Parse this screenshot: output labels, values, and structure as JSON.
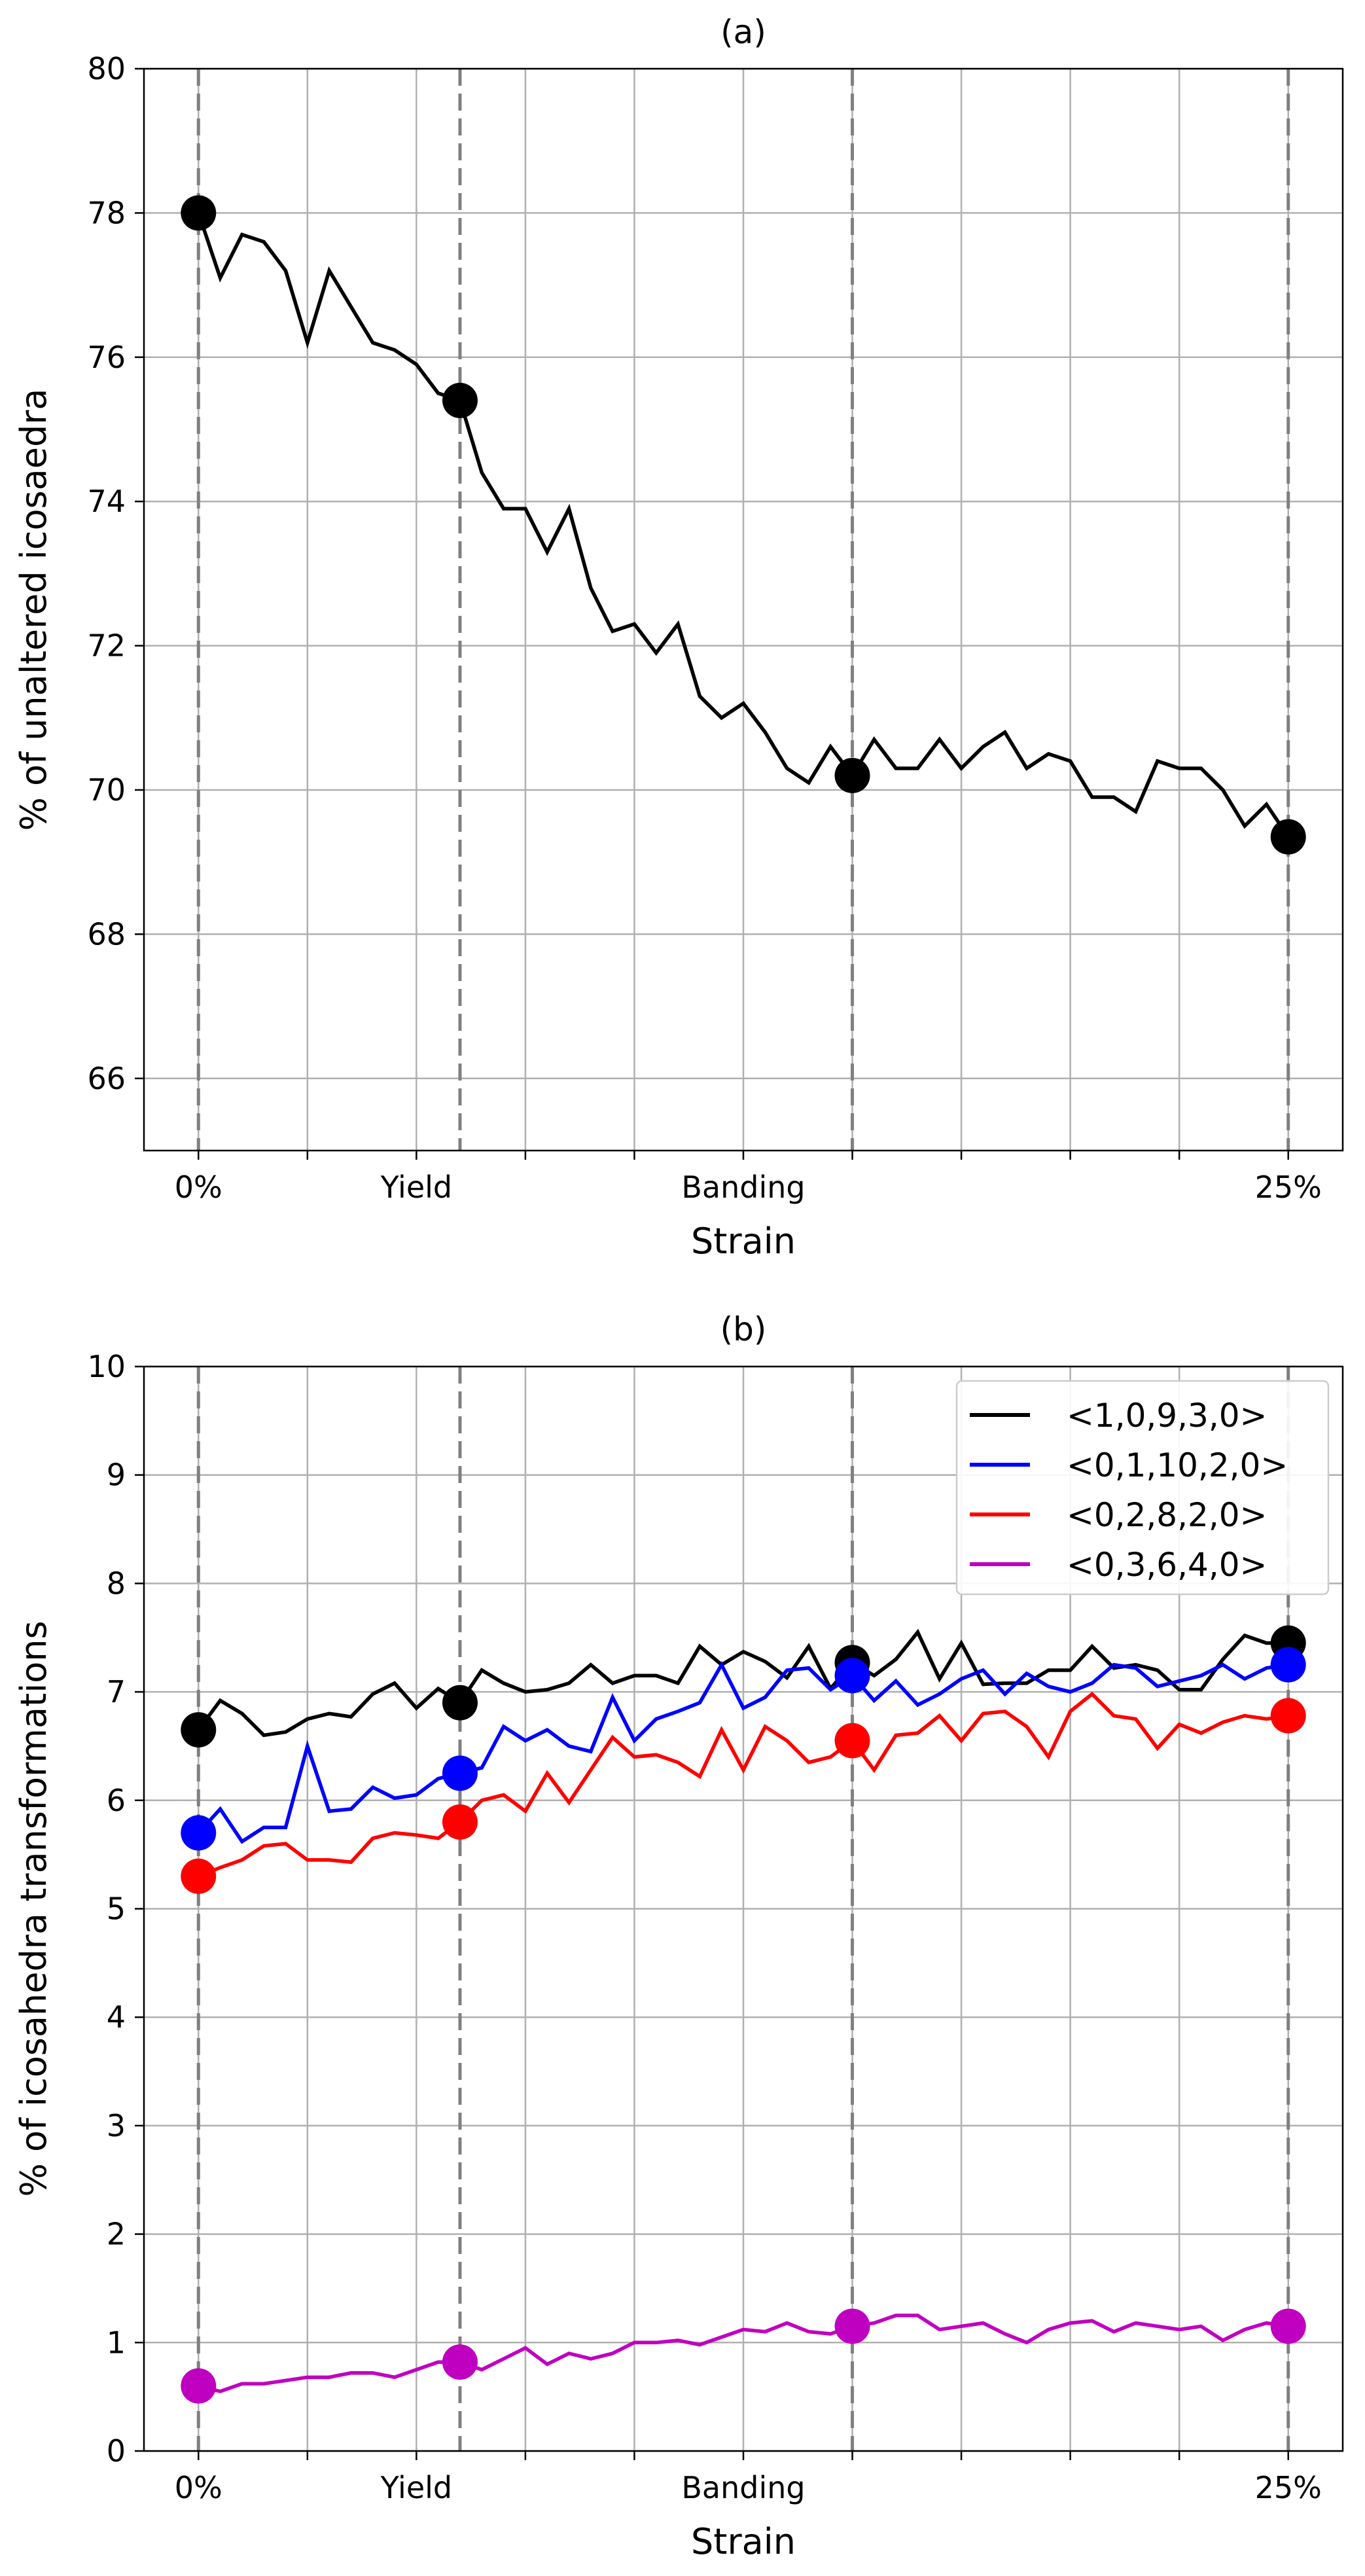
{
  "chart_data": [
    {
      "type": "line",
      "title": "(a)",
      "xlabel": "Strain",
      "ylabel": "% of unaltered icosaedra",
      "xlim": [
        -0.5,
        10.5
      ],
      "ylim": [
        65,
        80
      ],
      "yticks": [
        66,
        68,
        70,
        72,
        74,
        76,
        78,
        80
      ],
      "xticks": [
        {
          "pos": 0,
          "label": "0%"
        },
        {
          "pos": 1,
          "label": ""
        },
        {
          "pos": 2,
          "label": "Yield"
        },
        {
          "pos": 3,
          "label": ""
        },
        {
          "pos": 4,
          "label": ""
        },
        {
          "pos": 5,
          "label": "Banding"
        },
        {
          "pos": 6,
          "label": ""
        },
        {
          "pos": 7,
          "label": ""
        },
        {
          "pos": 8,
          "label": ""
        },
        {
          "pos": 9,
          "label": ""
        },
        {
          "pos": 10,
          "label": "25%"
        }
      ],
      "vlines": [
        0,
        2.4,
        6,
        10
      ],
      "grid": true,
      "series": [
        {
          "name": "unaltered icosaedra",
          "color": "#000000",
          "x": [
            0,
            0.2,
            0.4,
            0.6,
            0.8,
            1.0,
            1.2,
            1.4,
            1.6,
            1.8,
            2.0,
            2.2,
            2.4,
            2.6,
            2.8,
            3.0,
            3.2,
            3.4,
            3.6,
            3.8,
            4.0,
            4.2,
            4.4,
            4.6,
            4.8,
            5.0,
            5.2,
            5.4,
            5.6,
            5.8,
            6.0,
            6.2,
            6.4,
            6.6,
            6.8,
            7.0,
            7.2,
            7.4,
            7.6,
            7.8,
            8.0,
            8.2,
            8.4,
            8.6,
            8.8,
            9.0,
            9.2,
            9.4,
            9.6,
            9.8,
            10.0
          ],
          "y": [
            78.0,
            77.1,
            77.7,
            77.6,
            77.2,
            76.2,
            77.2,
            76.7,
            76.2,
            76.1,
            75.9,
            75.5,
            75.4,
            74.4,
            73.9,
            73.9,
            73.3,
            73.9,
            72.8,
            72.2,
            72.3,
            71.9,
            72.3,
            71.3,
            71.0,
            71.2,
            70.8,
            70.3,
            70.1,
            70.6,
            70.2,
            70.7,
            70.3,
            70.3,
            70.7,
            70.3,
            70.6,
            70.8,
            70.3,
            70.5,
            70.4,
            69.9,
            69.9,
            69.7,
            70.4,
            70.3,
            70.3,
            70.0,
            69.5,
            69.8,
            69.35
          ],
          "markers": [
            {
              "x": 0,
              "y": 78.0
            },
            {
              "x": 2.4,
              "y": 75.4
            },
            {
              "x": 6.0,
              "y": 70.2
            },
            {
              "x": 10.0,
              "y": 69.35
            }
          ]
        }
      ]
    },
    {
      "type": "line",
      "title": "(b)",
      "xlabel": "Strain",
      "ylabel": "% of icosahedra transformations",
      "xlim": [
        -0.5,
        10.5
      ],
      "ylim": [
        0,
        10
      ],
      "yticks": [
        0,
        1,
        2,
        3,
        4,
        5,
        6,
        7,
        8,
        9,
        10
      ],
      "xticks": [
        {
          "pos": 0,
          "label": "0%"
        },
        {
          "pos": 1,
          "label": ""
        },
        {
          "pos": 2,
          "label": "Yield"
        },
        {
          "pos": 3,
          "label": ""
        },
        {
          "pos": 4,
          "label": ""
        },
        {
          "pos": 5,
          "label": "Banding"
        },
        {
          "pos": 6,
          "label": ""
        },
        {
          "pos": 7,
          "label": ""
        },
        {
          "pos": 8,
          "label": ""
        },
        {
          "pos": 9,
          "label": ""
        },
        {
          "pos": 10,
          "label": "25%"
        }
      ],
      "vlines": [
        0,
        2.4,
        6,
        10
      ],
      "grid": true,
      "legend": "top-right",
      "series": [
        {
          "name": "<1,0,9,3,0>",
          "color": "#000000",
          "x": [
            0,
            0.2,
            0.4,
            0.6,
            0.8,
            1.0,
            1.2,
            1.4,
            1.6,
            1.8,
            2.0,
            2.2,
            2.4,
            2.6,
            2.8,
            3.0,
            3.2,
            3.4,
            3.6,
            3.8,
            4.0,
            4.2,
            4.4,
            4.6,
            4.8,
            5.0,
            5.2,
            5.4,
            5.6,
            5.8,
            6.0,
            6.2,
            6.4,
            6.6,
            6.8,
            7.0,
            7.2,
            7.4,
            7.6,
            7.8,
            8.0,
            8.2,
            8.4,
            8.6,
            8.8,
            9.0,
            9.2,
            9.4,
            9.6,
            9.8,
            10.0
          ],
          "y": [
            6.65,
            6.92,
            6.8,
            6.6,
            6.63,
            6.75,
            6.8,
            6.77,
            6.98,
            7.08,
            6.85,
            7.03,
            6.9,
            7.2,
            7.08,
            7.0,
            7.02,
            7.08,
            7.25,
            7.08,
            7.15,
            7.15,
            7.08,
            7.42,
            7.25,
            7.37,
            7.28,
            7.13,
            7.42,
            7.03,
            7.27,
            7.15,
            7.3,
            7.55,
            7.12,
            7.45,
            7.07,
            7.08,
            7.08,
            7.2,
            7.2,
            7.42,
            7.22,
            7.25,
            7.2,
            7.02,
            7.02,
            7.3,
            7.52,
            7.45,
            7.45
          ],
          "markers": [
            {
              "x": 0,
              "y": 6.65
            },
            {
              "x": 2.4,
              "y": 6.9
            },
            {
              "x": 6.0,
              "y": 7.27
            },
            {
              "x": 10.0,
              "y": 7.45
            }
          ]
        },
        {
          "name": "<0,1,10,2,0>",
          "color": "#0000ff",
          "x": [
            0,
            0.2,
            0.4,
            0.6,
            0.8,
            1.0,
            1.2,
            1.4,
            1.6,
            1.8,
            2.0,
            2.2,
            2.4,
            2.6,
            2.8,
            3.0,
            3.2,
            3.4,
            3.6,
            3.8,
            4.0,
            4.2,
            4.4,
            4.6,
            4.8,
            5.0,
            5.2,
            5.4,
            5.6,
            5.8,
            6.0,
            6.2,
            6.4,
            6.6,
            6.8,
            7.0,
            7.2,
            7.4,
            7.6,
            7.8,
            8.0,
            8.2,
            8.4,
            8.6,
            8.8,
            9.0,
            9.2,
            9.4,
            9.6,
            9.8,
            10.0
          ],
          "y": [
            5.7,
            5.92,
            5.62,
            5.75,
            5.75,
            6.5,
            5.9,
            5.92,
            6.12,
            6.02,
            6.05,
            6.2,
            6.25,
            6.3,
            6.68,
            6.55,
            6.65,
            6.5,
            6.45,
            6.95,
            6.55,
            6.75,
            6.82,
            6.9,
            7.25,
            6.85,
            6.95,
            7.2,
            7.22,
            7.02,
            7.15,
            6.92,
            7.1,
            6.88,
            6.98,
            7.12,
            7.2,
            6.98,
            7.17,
            7.05,
            7.0,
            7.08,
            7.25,
            7.22,
            7.05,
            7.1,
            7.15,
            7.25,
            7.12,
            7.22,
            7.25
          ],
          "markers": [
            {
              "x": 0,
              "y": 5.7
            },
            {
              "x": 2.4,
              "y": 6.25
            },
            {
              "x": 6.0,
              "y": 7.15
            },
            {
              "x": 10.0,
              "y": 7.25
            }
          ]
        },
        {
          "name": "<0,2,8,2,0>",
          "color": "#ff0000",
          "x": [
            0,
            0.2,
            0.4,
            0.6,
            0.8,
            1.0,
            1.2,
            1.4,
            1.6,
            1.8,
            2.0,
            2.2,
            2.4,
            2.6,
            2.8,
            3.0,
            3.2,
            3.4,
            3.6,
            3.8,
            4.0,
            4.2,
            4.4,
            4.6,
            4.8,
            5.0,
            5.2,
            5.4,
            5.6,
            5.8,
            6.0,
            6.2,
            6.4,
            6.6,
            6.8,
            7.0,
            7.2,
            7.4,
            7.6,
            7.8,
            8.0,
            8.2,
            8.4,
            8.6,
            8.8,
            9.0,
            9.2,
            9.4,
            9.6,
            9.8,
            10.0
          ],
          "y": [
            5.3,
            5.38,
            5.45,
            5.58,
            5.6,
            5.45,
            5.45,
            5.43,
            5.65,
            5.7,
            5.68,
            5.65,
            5.8,
            6.0,
            6.05,
            5.9,
            6.25,
            5.98,
            6.28,
            6.58,
            6.4,
            6.42,
            6.35,
            6.22,
            6.65,
            6.28,
            6.68,
            6.55,
            6.35,
            6.4,
            6.55,
            6.28,
            6.6,
            6.62,
            6.78,
            6.55,
            6.8,
            6.82,
            6.68,
            6.4,
            6.82,
            6.98,
            6.78,
            6.75,
            6.48,
            6.7,
            6.62,
            6.72,
            6.78,
            6.75,
            6.78
          ],
          "markers": [
            {
              "x": 0,
              "y": 5.3
            },
            {
              "x": 2.4,
              "y": 5.8
            },
            {
              "x": 6.0,
              "y": 6.55
            },
            {
              "x": 10.0,
              "y": 6.78
            }
          ]
        },
        {
          "name": "<0,3,6,4,0>",
          "color": "#c000c0",
          "x": [
            0,
            0.2,
            0.4,
            0.6,
            0.8,
            1.0,
            1.2,
            1.4,
            1.6,
            1.8,
            2.0,
            2.2,
            2.4,
            2.6,
            2.8,
            3.0,
            3.2,
            3.4,
            3.6,
            3.8,
            4.0,
            4.2,
            4.4,
            4.6,
            4.8,
            5.0,
            5.2,
            5.4,
            5.6,
            5.8,
            6.0,
            6.2,
            6.4,
            6.6,
            6.8,
            7.0,
            7.2,
            7.4,
            7.6,
            7.8,
            8.0,
            8.2,
            8.4,
            8.6,
            8.8,
            9.0,
            9.2,
            9.4,
            9.6,
            9.8,
            10.0
          ],
          "y": [
            0.6,
            0.55,
            0.62,
            0.62,
            0.65,
            0.68,
            0.68,
            0.72,
            0.72,
            0.68,
            0.75,
            0.82,
            0.82,
            0.75,
            0.85,
            0.95,
            0.8,
            0.9,
            0.85,
            0.9,
            1.0,
            1.0,
            1.02,
            0.98,
            1.05,
            1.12,
            1.1,
            1.18,
            1.1,
            1.08,
            1.15,
            1.18,
            1.25,
            1.25,
            1.12,
            1.15,
            1.18,
            1.08,
            1.0,
            1.12,
            1.18,
            1.2,
            1.1,
            1.18,
            1.15,
            1.12,
            1.15,
            1.02,
            1.12,
            1.18,
            1.15
          ],
          "markers": [
            {
              "x": 0,
              "y": 0.6
            },
            {
              "x": 2.4,
              "y": 0.82
            },
            {
              "x": 6.0,
              "y": 1.15
            },
            {
              "x": 10.0,
              "y": 1.15
            }
          ]
        }
      ]
    }
  ]
}
